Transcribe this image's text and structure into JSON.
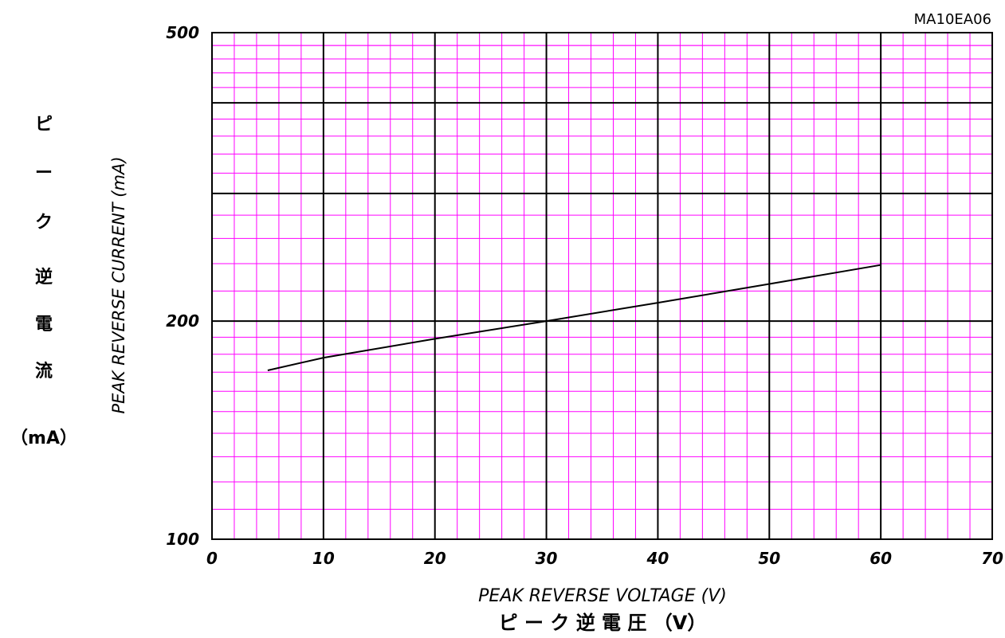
{
  "chart_data": {
    "type": "line",
    "title": "",
    "model_code": "MA10EA06",
    "xlabel": "PEAK REVERSE VOLTAGE (V)",
    "xlabel_jp": "ピ ー ク 逆 電 圧 （V）",
    "ylabel": "PEAK REVERSE CURRENT (mA)",
    "ylabel_jp_chars": [
      "ピ",
      "ー",
      "ク",
      "逆",
      "電",
      "流",
      "（mA）"
    ],
    "xlim": [
      0,
      70
    ],
    "ylim": [
      100,
      500
    ],
    "y_scale": "log",
    "x_ticks": [
      "0",
      "10",
      "20",
      "30",
      "40",
      "50",
      "60",
      "70"
    ],
    "y_ticks": [
      {
        "value": 100,
        "label": "100"
      },
      {
        "value": 200,
        "label": "200"
      },
      {
        "value": 500,
        "label": "500"
      }
    ],
    "grid": true,
    "colors": {
      "major_grid": "#000000",
      "minor_grid": "#ff00ff",
      "line": "#000000"
    },
    "series": [
      {
        "x": [
          5,
          10,
          20,
          30,
          40,
          50,
          60
        ],
        "y": [
          171,
          178,
          189,
          200,
          212,
          225,
          239
        ]
      }
    ]
  }
}
